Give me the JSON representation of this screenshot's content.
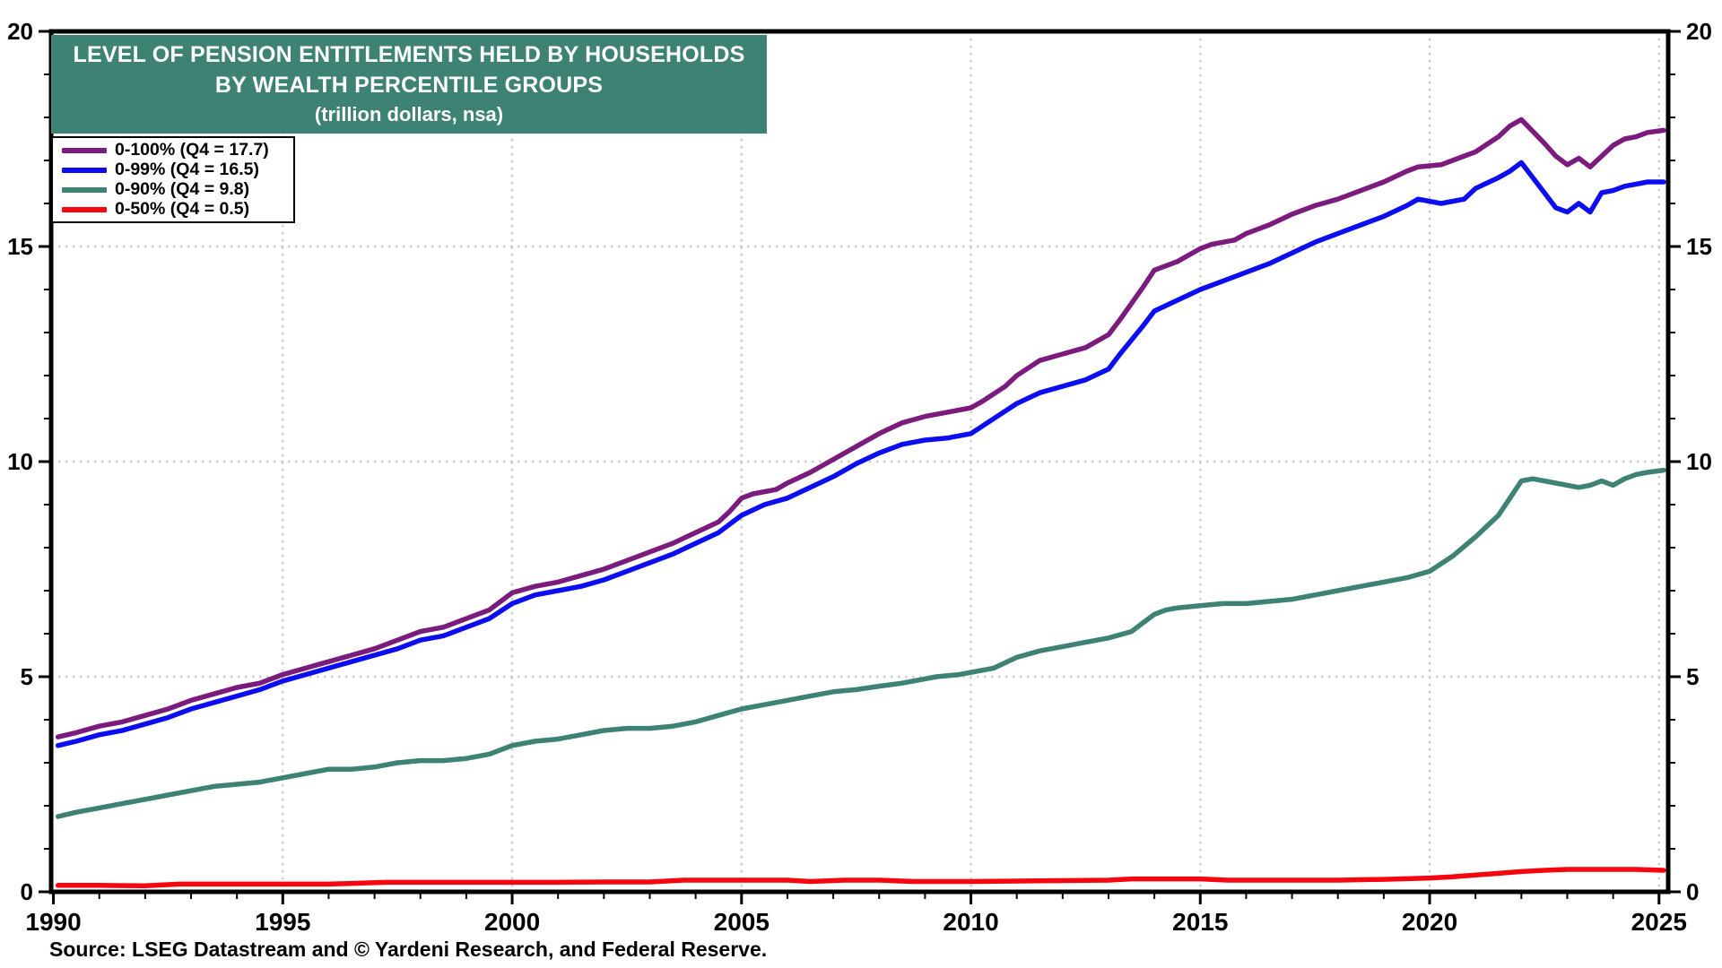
{
  "title": {
    "line1": "LEVEL OF PENSION ENTITLEMENTS HELD BY HOUSEHOLDS",
    "line2": "BY WEALTH PERCENTILE GROUPS",
    "line3": "(trillion dollars, nsa)"
  },
  "source": "Source: LSEG Datastream and © Yardeni Research, and Federal Reserve.",
  "colors": {
    "banner_bg": "#3D8273",
    "title_text": "#FFFFFF",
    "axis": "#000000",
    "grid": "#CCCCCC",
    "purple": "#7A1B7D",
    "blue": "#0D0DF2",
    "teal": "#3D8273",
    "red": "#F6060F"
  },
  "chart_data": {
    "type": "line",
    "title": "LEVEL OF PENSION ENTITLEMENTS HELD BY HOUSEHOLDS BY WEALTH PERCENTILE GROUPS",
    "subtitle": "(trillion dollars, nsa)",
    "xlabel": "",
    "ylabel": "trillion dollars",
    "x_axis": {
      "min": 1989.95,
      "max": 2025.2,
      "major_ticks": [
        1990,
        1995,
        2000,
        2005,
        2010,
        2015,
        2020,
        2025
      ],
      "minor_tick_step": 1
    },
    "y_axis": {
      "min": 0,
      "max": 20,
      "major_ticks": [
        0,
        5,
        10,
        15,
        20
      ],
      "minor_tick_step": 1,
      "label_both_sides": true
    },
    "grid": {
      "h_lines": [
        5,
        10,
        15
      ],
      "v_lines": [
        1995,
        2000,
        2005,
        2010,
        2015,
        2020,
        2025
      ],
      "style": "dotted"
    },
    "legend_position": "top-left",
    "series": [
      {
        "name": "0-100%",
        "label": "0-100% (Q4 = 17.7)",
        "color": "#7A1B7D",
        "points": [
          [
            1990.1,
            3.6
          ],
          [
            1990.5,
            3.7
          ],
          [
            1991,
            3.85
          ],
          [
            1991.5,
            3.95
          ],
          [
            1992,
            4.1
          ],
          [
            1992.5,
            4.25
          ],
          [
            1993,
            4.45
          ],
          [
            1993.5,
            4.6
          ],
          [
            1994,
            4.75
          ],
          [
            1994.5,
            4.85
          ],
          [
            1995,
            5.05
          ],
          [
            1995.5,
            5.2
          ],
          [
            1996,
            5.35
          ],
          [
            1996.5,
            5.5
          ],
          [
            1997,
            5.65
          ],
          [
            1997.5,
            5.85
          ],
          [
            1998,
            6.05
          ],
          [
            1998.5,
            6.15
          ],
          [
            1999,
            6.35
          ],
          [
            1999.5,
            6.55
          ],
          [
            2000,
            6.95
          ],
          [
            2000.5,
            7.1
          ],
          [
            2001,
            7.2
          ],
          [
            2001.5,
            7.35
          ],
          [
            2002,
            7.5
          ],
          [
            2002.5,
            7.7
          ],
          [
            2003,
            7.9
          ],
          [
            2003.5,
            8.1
          ],
          [
            2004,
            8.35
          ],
          [
            2004.5,
            8.6
          ],
          [
            2004.75,
            8.85
          ],
          [
            2005,
            9.15
          ],
          [
            2005.25,
            9.25
          ],
          [
            2005.75,
            9.35
          ],
          [
            2006,
            9.5
          ],
          [
            2006.5,
            9.75
          ],
          [
            2007,
            10.05
          ],
          [
            2007.5,
            10.35
          ],
          [
            2008,
            10.65
          ],
          [
            2008.5,
            10.9
          ],
          [
            2009,
            11.05
          ],
          [
            2009.5,
            11.15
          ],
          [
            2010,
            11.25
          ],
          [
            2010.25,
            11.4
          ],
          [
            2010.75,
            11.75
          ],
          [
            2011,
            12.0
          ],
          [
            2011.5,
            12.35
          ],
          [
            2012,
            12.5
          ],
          [
            2012.5,
            12.65
          ],
          [
            2013,
            12.95
          ],
          [
            2013.25,
            13.3
          ],
          [
            2013.75,
            14.05
          ],
          [
            2014,
            14.45
          ],
          [
            2014.5,
            14.65
          ],
          [
            2015,
            14.95
          ],
          [
            2015.25,
            15.05
          ],
          [
            2015.75,
            15.15
          ],
          [
            2016,
            15.3
          ],
          [
            2016.5,
            15.5
          ],
          [
            2017,
            15.75
          ],
          [
            2017.5,
            15.95
          ],
          [
            2018,
            16.1
          ],
          [
            2018.5,
            16.3
          ],
          [
            2019,
            16.5
          ],
          [
            2019.5,
            16.75
          ],
          [
            2019.75,
            16.85
          ],
          [
            2020.25,
            16.9
          ],
          [
            2020.5,
            17.0
          ],
          [
            2021,
            17.2
          ],
          [
            2021.5,
            17.55
          ],
          [
            2021.75,
            17.8
          ],
          [
            2022,
            17.95
          ],
          [
            2022.5,
            17.4
          ],
          [
            2022.75,
            17.1
          ],
          [
            2023,
            16.9
          ],
          [
            2023.25,
            17.05
          ],
          [
            2023.5,
            16.85
          ],
          [
            2023.75,
            17.1
          ],
          [
            2024,
            17.35
          ],
          [
            2024.25,
            17.5
          ],
          [
            2024.5,
            17.55
          ],
          [
            2024.75,
            17.65
          ],
          [
            2025.1,
            17.7
          ]
        ]
      },
      {
        "name": "0-99%",
        "label": "0-99% (Q4 = 16.5)",
        "color": "#0D0DF2",
        "points": [
          [
            1990.1,
            3.4
          ],
          [
            1990.5,
            3.5
          ],
          [
            1991,
            3.65
          ],
          [
            1991.5,
            3.75
          ],
          [
            1992,
            3.9
          ],
          [
            1992.5,
            4.05
          ],
          [
            1993,
            4.25
          ],
          [
            1993.5,
            4.4
          ],
          [
            1994,
            4.55
          ],
          [
            1994.5,
            4.7
          ],
          [
            1995,
            4.9
          ],
          [
            1995.5,
            5.05
          ],
          [
            1996,
            5.2
          ],
          [
            1996.5,
            5.35
          ],
          [
            1997,
            5.5
          ],
          [
            1997.5,
            5.65
          ],
          [
            1998,
            5.85
          ],
          [
            1998.5,
            5.95
          ],
          [
            1999,
            6.15
          ],
          [
            1999.5,
            6.35
          ],
          [
            2000,
            6.7
          ],
          [
            2000.5,
            6.9
          ],
          [
            2001,
            7.0
          ],
          [
            2001.5,
            7.1
          ],
          [
            2002,
            7.25
          ],
          [
            2002.5,
            7.45
          ],
          [
            2003,
            7.65
          ],
          [
            2003.5,
            7.85
          ],
          [
            2004,
            8.1
          ],
          [
            2004.5,
            8.35
          ],
          [
            2004.75,
            8.55
          ],
          [
            2005,
            8.75
          ],
          [
            2005.5,
            9.0
          ],
          [
            2006,
            9.15
          ],
          [
            2006.5,
            9.4
          ],
          [
            2007,
            9.65
          ],
          [
            2007.5,
            9.95
          ],
          [
            2008,
            10.2
          ],
          [
            2008.5,
            10.4
          ],
          [
            2009,
            10.5
          ],
          [
            2009.5,
            10.55
          ],
          [
            2010,
            10.65
          ],
          [
            2010.5,
            11.0
          ],
          [
            2011,
            11.35
          ],
          [
            2011.5,
            11.6
          ],
          [
            2012,
            11.75
          ],
          [
            2012.5,
            11.9
          ],
          [
            2013,
            12.15
          ],
          [
            2013.25,
            12.5
          ],
          [
            2013.75,
            13.15
          ],
          [
            2014,
            13.5
          ],
          [
            2014.5,
            13.75
          ],
          [
            2015,
            14.0
          ],
          [
            2015.5,
            14.2
          ],
          [
            2016,
            14.4
          ],
          [
            2016.5,
            14.6
          ],
          [
            2017,
            14.85
          ],
          [
            2017.5,
            15.1
          ],
          [
            2018,
            15.3
          ],
          [
            2018.5,
            15.5
          ],
          [
            2019,
            15.7
          ],
          [
            2019.5,
            15.95
          ],
          [
            2019.75,
            16.1
          ],
          [
            2020.25,
            16.0
          ],
          [
            2020.75,
            16.1
          ],
          [
            2021,
            16.35
          ],
          [
            2021.5,
            16.6
          ],
          [
            2021.75,
            16.75
          ],
          [
            2022,
            16.95
          ],
          [
            2022.5,
            16.25
          ],
          [
            2022.75,
            15.9
          ],
          [
            2023,
            15.8
          ],
          [
            2023.25,
            16.0
          ],
          [
            2023.5,
            15.8
          ],
          [
            2023.75,
            16.25
          ],
          [
            2024,
            16.3
          ],
          [
            2024.25,
            16.4
          ],
          [
            2024.5,
            16.45
          ],
          [
            2024.75,
            16.5
          ],
          [
            2025.1,
            16.5
          ]
        ]
      },
      {
        "name": "0-90%",
        "label": "0-90% (Q4 = 9.8)",
        "color": "#3D8273",
        "points": [
          [
            1990.1,
            1.75
          ],
          [
            1990.5,
            1.85
          ],
          [
            1991,
            1.95
          ],
          [
            1991.5,
            2.05
          ],
          [
            1992,
            2.15
          ],
          [
            1992.5,
            2.25
          ],
          [
            1993,
            2.35
          ],
          [
            1993.5,
            2.45
          ],
          [
            1994,
            2.5
          ],
          [
            1994.5,
            2.55
          ],
          [
            1995,
            2.65
          ],
          [
            1995.5,
            2.75
          ],
          [
            1996,
            2.85
          ],
          [
            1996.5,
            2.85
          ],
          [
            1997,
            2.9
          ],
          [
            1997.5,
            3.0
          ],
          [
            1998,
            3.05
          ],
          [
            1998.5,
            3.05
          ],
          [
            1999,
            3.1
          ],
          [
            1999.5,
            3.2
          ],
          [
            2000,
            3.4
          ],
          [
            2000.5,
            3.5
          ],
          [
            2001,
            3.55
          ],
          [
            2001.5,
            3.65
          ],
          [
            2002,
            3.75
          ],
          [
            2002.5,
            3.8
          ],
          [
            2003,
            3.8
          ],
          [
            2003.5,
            3.85
          ],
          [
            2004,
            3.95
          ],
          [
            2004.5,
            4.1
          ],
          [
            2005,
            4.25
          ],
          [
            2005.5,
            4.35
          ],
          [
            2006,
            4.45
          ],
          [
            2006.5,
            4.55
          ],
          [
            2007,
            4.65
          ],
          [
            2007.5,
            4.7
          ],
          [
            2008,
            4.78
          ],
          [
            2008.5,
            4.85
          ],
          [
            2009,
            4.95
          ],
          [
            2009.25,
            5.0
          ],
          [
            2009.75,
            5.05
          ],
          [
            2010,
            5.1
          ],
          [
            2010.5,
            5.2
          ],
          [
            2011,
            5.45
          ],
          [
            2011.5,
            5.6
          ],
          [
            2012,
            5.7
          ],
          [
            2012.5,
            5.8
          ],
          [
            2013,
            5.9
          ],
          [
            2013.5,
            6.05
          ],
          [
            2013.75,
            6.25
          ],
          [
            2014,
            6.45
          ],
          [
            2014.25,
            6.55
          ],
          [
            2014.5,
            6.6
          ],
          [
            2015,
            6.65
          ],
          [
            2015.5,
            6.7
          ],
          [
            2016,
            6.7
          ],
          [
            2016.5,
            6.75
          ],
          [
            2017,
            6.8
          ],
          [
            2017.5,
            6.9
          ],
          [
            2018,
            7.0
          ],
          [
            2018.5,
            7.1
          ],
          [
            2019,
            7.2
          ],
          [
            2019.5,
            7.3
          ],
          [
            2020,
            7.45
          ],
          [
            2020.5,
            7.8
          ],
          [
            2021,
            8.25
          ],
          [
            2021.5,
            8.75
          ],
          [
            2021.75,
            9.15
          ],
          [
            2022,
            9.55
          ],
          [
            2022.25,
            9.6
          ],
          [
            2022.75,
            9.5
          ],
          [
            2023,
            9.45
          ],
          [
            2023.25,
            9.4
          ],
          [
            2023.5,
            9.45
          ],
          [
            2023.75,
            9.55
          ],
          [
            2024,
            9.45
          ],
          [
            2024.25,
            9.6
          ],
          [
            2024.5,
            9.7
          ],
          [
            2024.75,
            9.75
          ],
          [
            2025.1,
            9.8
          ]
        ]
      },
      {
        "name": "0-50%",
        "label": "0-50% (Q4 = 0.5)",
        "color": "#F6060F",
        "points": [
          [
            1990.1,
            0.15
          ],
          [
            1991,
            0.15
          ],
          [
            1992,
            0.14
          ],
          [
            1992.75,
            0.18
          ],
          [
            1994,
            0.18
          ],
          [
            1995,
            0.18
          ],
          [
            1996,
            0.18
          ],
          [
            1997.25,
            0.22
          ],
          [
            1998,
            0.22
          ],
          [
            1999,
            0.22
          ],
          [
            2000,
            0.22
          ],
          [
            2001,
            0.22
          ],
          [
            2002,
            0.23
          ],
          [
            2003,
            0.23
          ],
          [
            2003.75,
            0.27
          ],
          [
            2005,
            0.27
          ],
          [
            2006,
            0.27
          ],
          [
            2006.5,
            0.24
          ],
          [
            2007.25,
            0.27
          ],
          [
            2008,
            0.27
          ],
          [
            2008.75,
            0.24
          ],
          [
            2010,
            0.24
          ],
          [
            2011,
            0.25
          ],
          [
            2012,
            0.26
          ],
          [
            2013,
            0.27
          ],
          [
            2013.5,
            0.3
          ],
          [
            2014,
            0.3
          ],
          [
            2015,
            0.3
          ],
          [
            2015.6,
            0.27
          ],
          [
            2017,
            0.27
          ],
          [
            2018,
            0.27
          ],
          [
            2019,
            0.29
          ],
          [
            2020,
            0.32
          ],
          [
            2020.5,
            0.35
          ],
          [
            2021,
            0.39
          ],
          [
            2021.5,
            0.43
          ],
          [
            2022,
            0.47
          ],
          [
            2022.5,
            0.5
          ],
          [
            2023,
            0.52
          ],
          [
            2023.5,
            0.52
          ],
          [
            2024,
            0.52
          ],
          [
            2024.5,
            0.52
          ],
          [
            2025.1,
            0.5
          ]
        ]
      }
    ]
  }
}
